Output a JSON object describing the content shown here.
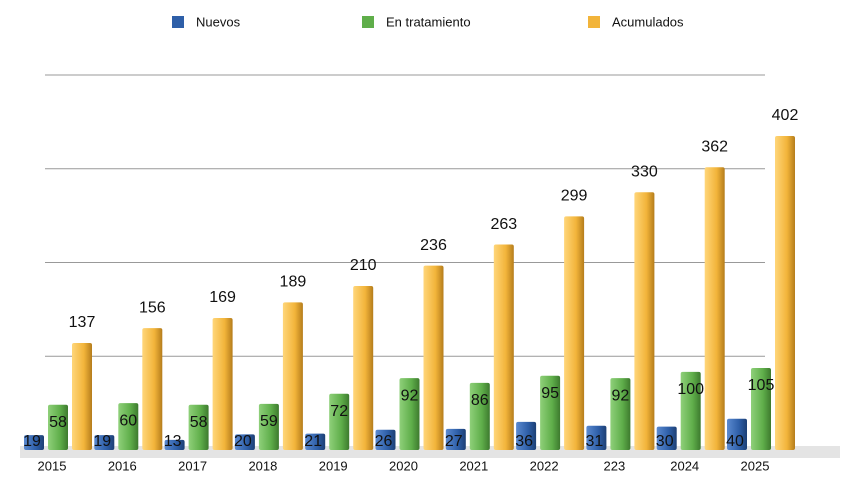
{
  "chart_data": {
    "type": "bar",
    "categories": [
      "2015",
      "2016",
      "2017",
      "2018",
      "2019",
      "2020",
      "2021",
      "2022",
      "223",
      "2024",
      "2025"
    ],
    "series": [
      {
        "name": "Nuevos",
        "color": "#2e5fa8",
        "values": [
          19,
          19,
          13,
          20,
          21,
          26,
          27,
          36,
          31,
          30,
          40
        ]
      },
      {
        "name": "En tratamiento",
        "color": "#5fae4a",
        "values": [
          58,
          60,
          58,
          59,
          72,
          92,
          86,
          95,
          92,
          100,
          105
        ]
      },
      {
        "name": "Acumulados",
        "color": "#f2b43a",
        "values": [
          137,
          156,
          169,
          189,
          210,
          236,
          263,
          299,
          330,
          362,
          402
        ]
      }
    ],
    "ylim": [
      0,
      480
    ],
    "yticks": [
      120,
      240,
      360,
      480
    ],
    "grid": true
  }
}
